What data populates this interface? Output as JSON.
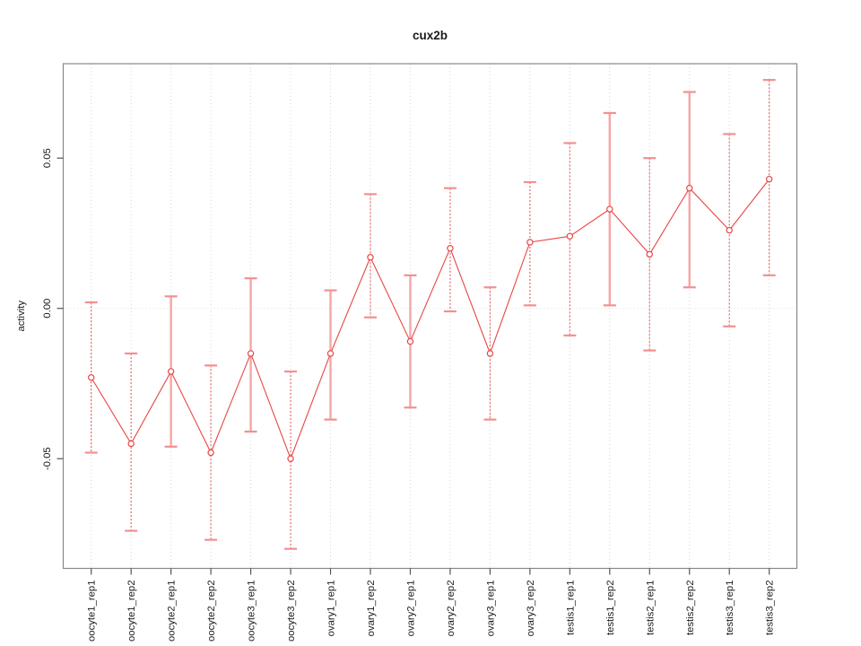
{
  "chart_data": {
    "type": "line",
    "title": "cux2b",
    "xlabel": "",
    "ylabel": "activity",
    "legend": "none",
    "grid": {
      "vertical_dotted_per_category": true,
      "horizontal_dotted_zero_line": true
    },
    "categories": [
      "oocyte1_rep1",
      "oocyte1_rep2",
      "oocyte2_rep1",
      "oocyte2_rep2",
      "oocyte3_rep1",
      "oocyte3_rep2",
      "ovary1_rep1",
      "ovary1_rep2",
      "ovary2_rep1",
      "ovary2_rep2",
      "ovary3_rep1",
      "ovary3_rep2",
      "testis1_rep1",
      "testis1_rep2",
      "testis2_rep1",
      "testis2_rep2",
      "testis3_rep1",
      "testis3_rep2"
    ],
    "series": [
      {
        "name": "activity",
        "values": [
          -0.023,
          -0.045,
          -0.021,
          -0.048,
          -0.015,
          -0.05,
          -0.015,
          0.017,
          -0.011,
          0.02,
          -0.015,
          0.022,
          0.024,
          0.033,
          0.018,
          0.04,
          0.026,
          0.043
        ],
        "lower": [
          -0.048,
          -0.074,
          -0.046,
          -0.077,
          -0.041,
          -0.08,
          -0.037,
          -0.003,
          -0.033,
          -0.001,
          -0.037,
          0.001,
          -0.009,
          0.001,
          -0.014,
          0.007,
          -0.006,
          0.011
        ],
        "upper": [
          0.002,
          -0.015,
          0.004,
          -0.019,
          0.01,
          -0.021,
          0.006,
          0.038,
          0.011,
          0.04,
          0.007,
          0.042,
          0.055,
          0.065,
          0.05,
          0.072,
          0.058,
          0.076
        ]
      }
    ],
    "error_bar_styles": [
      "dashed",
      "dashed",
      "solid",
      "dashed",
      "solid",
      "dashed",
      "solid",
      "dashed",
      "solid",
      "dashed",
      "dashed",
      "dashed",
      "dashed",
      "solid",
      "dashed",
      "solid",
      "dashed",
      "dashed"
    ],
    "yticks": {
      "values": [
        0.05,
        0.0,
        -0.05
      ],
      "labels": [
        "0.05",
        "0.00",
        "-0.05"
      ]
    },
    "ylim": [
      -0.087,
      0.082
    ],
    "marker": "open-circle",
    "colors": {
      "series_line": "#e84545",
      "marker_stroke": "#e84545",
      "error_bar_dashed": "#ea6b6b",
      "error_bar_solid": "#f5a6a6",
      "error_bar_cap": "#f29090",
      "gridline": "#d6d6d6",
      "zero_line": "#dcdcdc",
      "axis_box": "#888888",
      "tick_mark": "#555555",
      "text": "#1a1a1a"
    }
  }
}
